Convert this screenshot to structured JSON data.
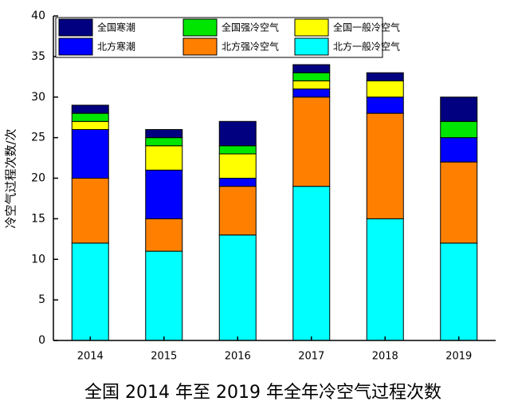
{
  "chart_data": {
    "type": "stacked_bar",
    "title": "全国 2014 年至 2019 年全年冷空气过程次数",
    "y_label": "冷空气过程次数/次",
    "categories": [
      "2014",
      "2015",
      "2016",
      "2017",
      "2018",
      "2019"
    ],
    "series": [
      {
        "name": "全国寒潮",
        "color": "#000080",
        "values": [
          1,
          1,
          3,
          1,
          1,
          3
        ]
      },
      {
        "name": "全国强冷空气",
        "color": "#00e600",
        "values": [
          1,
          1,
          1,
          1,
          0,
          2
        ]
      },
      {
        "name": "全国一般冷空气",
        "color": "#ffff00",
        "values": [
          1,
          3,
          3,
          1,
          2,
          0
        ]
      },
      {
        "name": "北方寒潮",
        "color": "#0000ff",
        "values": [
          6,
          6,
          1,
          1,
          2,
          3
        ]
      },
      {
        "name": "北方强冷空气",
        "color": "#ff8000",
        "values": [
          8,
          4,
          6,
          11,
          13,
          10
        ]
      },
      {
        "name": "北方一般冷空气",
        "color": "#00ffff",
        "values": [
          12,
          11,
          13,
          19,
          15,
          12
        ]
      }
    ],
    "ylim": [
      0,
      40
    ],
    "yticks": [
      0,
      5,
      10,
      15,
      20,
      25,
      30,
      35,
      40
    ]
  }
}
